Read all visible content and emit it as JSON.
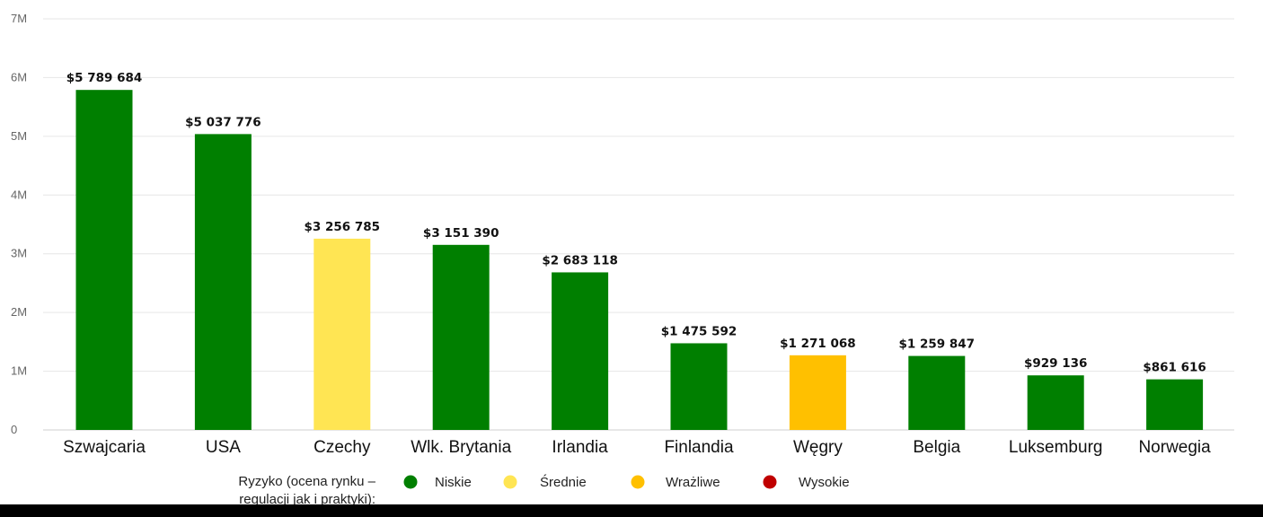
{
  "chart_data": {
    "type": "bar",
    "categories": [
      "Szwajcaria",
      "USA",
      "Czechy",
      "Wlk. Brytania",
      "Irlandia",
      "Finlandia",
      "Węgry",
      "Belgia",
      "Luksemburg",
      "Norwegia"
    ],
    "values": [
      5789684,
      5037776,
      3256785,
      3151390,
      2683118,
      1475592,
      1271068,
      1259847,
      929136,
      861616
    ],
    "value_labels": [
      "$5 789 684",
      "$5 037 776",
      "$3 256 785",
      "$3 151 390",
      "$2 683 118",
      "$1 475 592",
      "$1 271 068",
      "$1 259 847",
      "$929 136",
      "$861 616"
    ],
    "risk": [
      "Niskie",
      "Niskie",
      "Średnie",
      "Niskie",
      "Niskie",
      "Niskie",
      "Wrażliwe",
      "Niskie",
      "Niskie",
      "Niskie"
    ],
    "ylim": [
      0,
      7000000
    ],
    "y_ticks": [
      0,
      1000000,
      2000000,
      3000000,
      4000000,
      5000000,
      6000000,
      7000000
    ],
    "y_tick_labels": [
      "0",
      "1M",
      "2M",
      "3M",
      "4M",
      "5M",
      "6M",
      "7M"
    ],
    "grid": true,
    "legend_position": "bottom"
  },
  "legend": {
    "title_line1": "Ryzyko (ocena rynku –",
    "title_line2": "regulacji jak i praktyki):",
    "items": [
      {
        "label": "Niskie",
        "color": "#007f00"
      },
      {
        "label": "Średnie",
        "color": "#ffe553"
      },
      {
        "label": "Wrażliwe",
        "color": "#ffc000"
      },
      {
        "label": "Wysokie",
        "color": "#c00000"
      }
    ]
  }
}
